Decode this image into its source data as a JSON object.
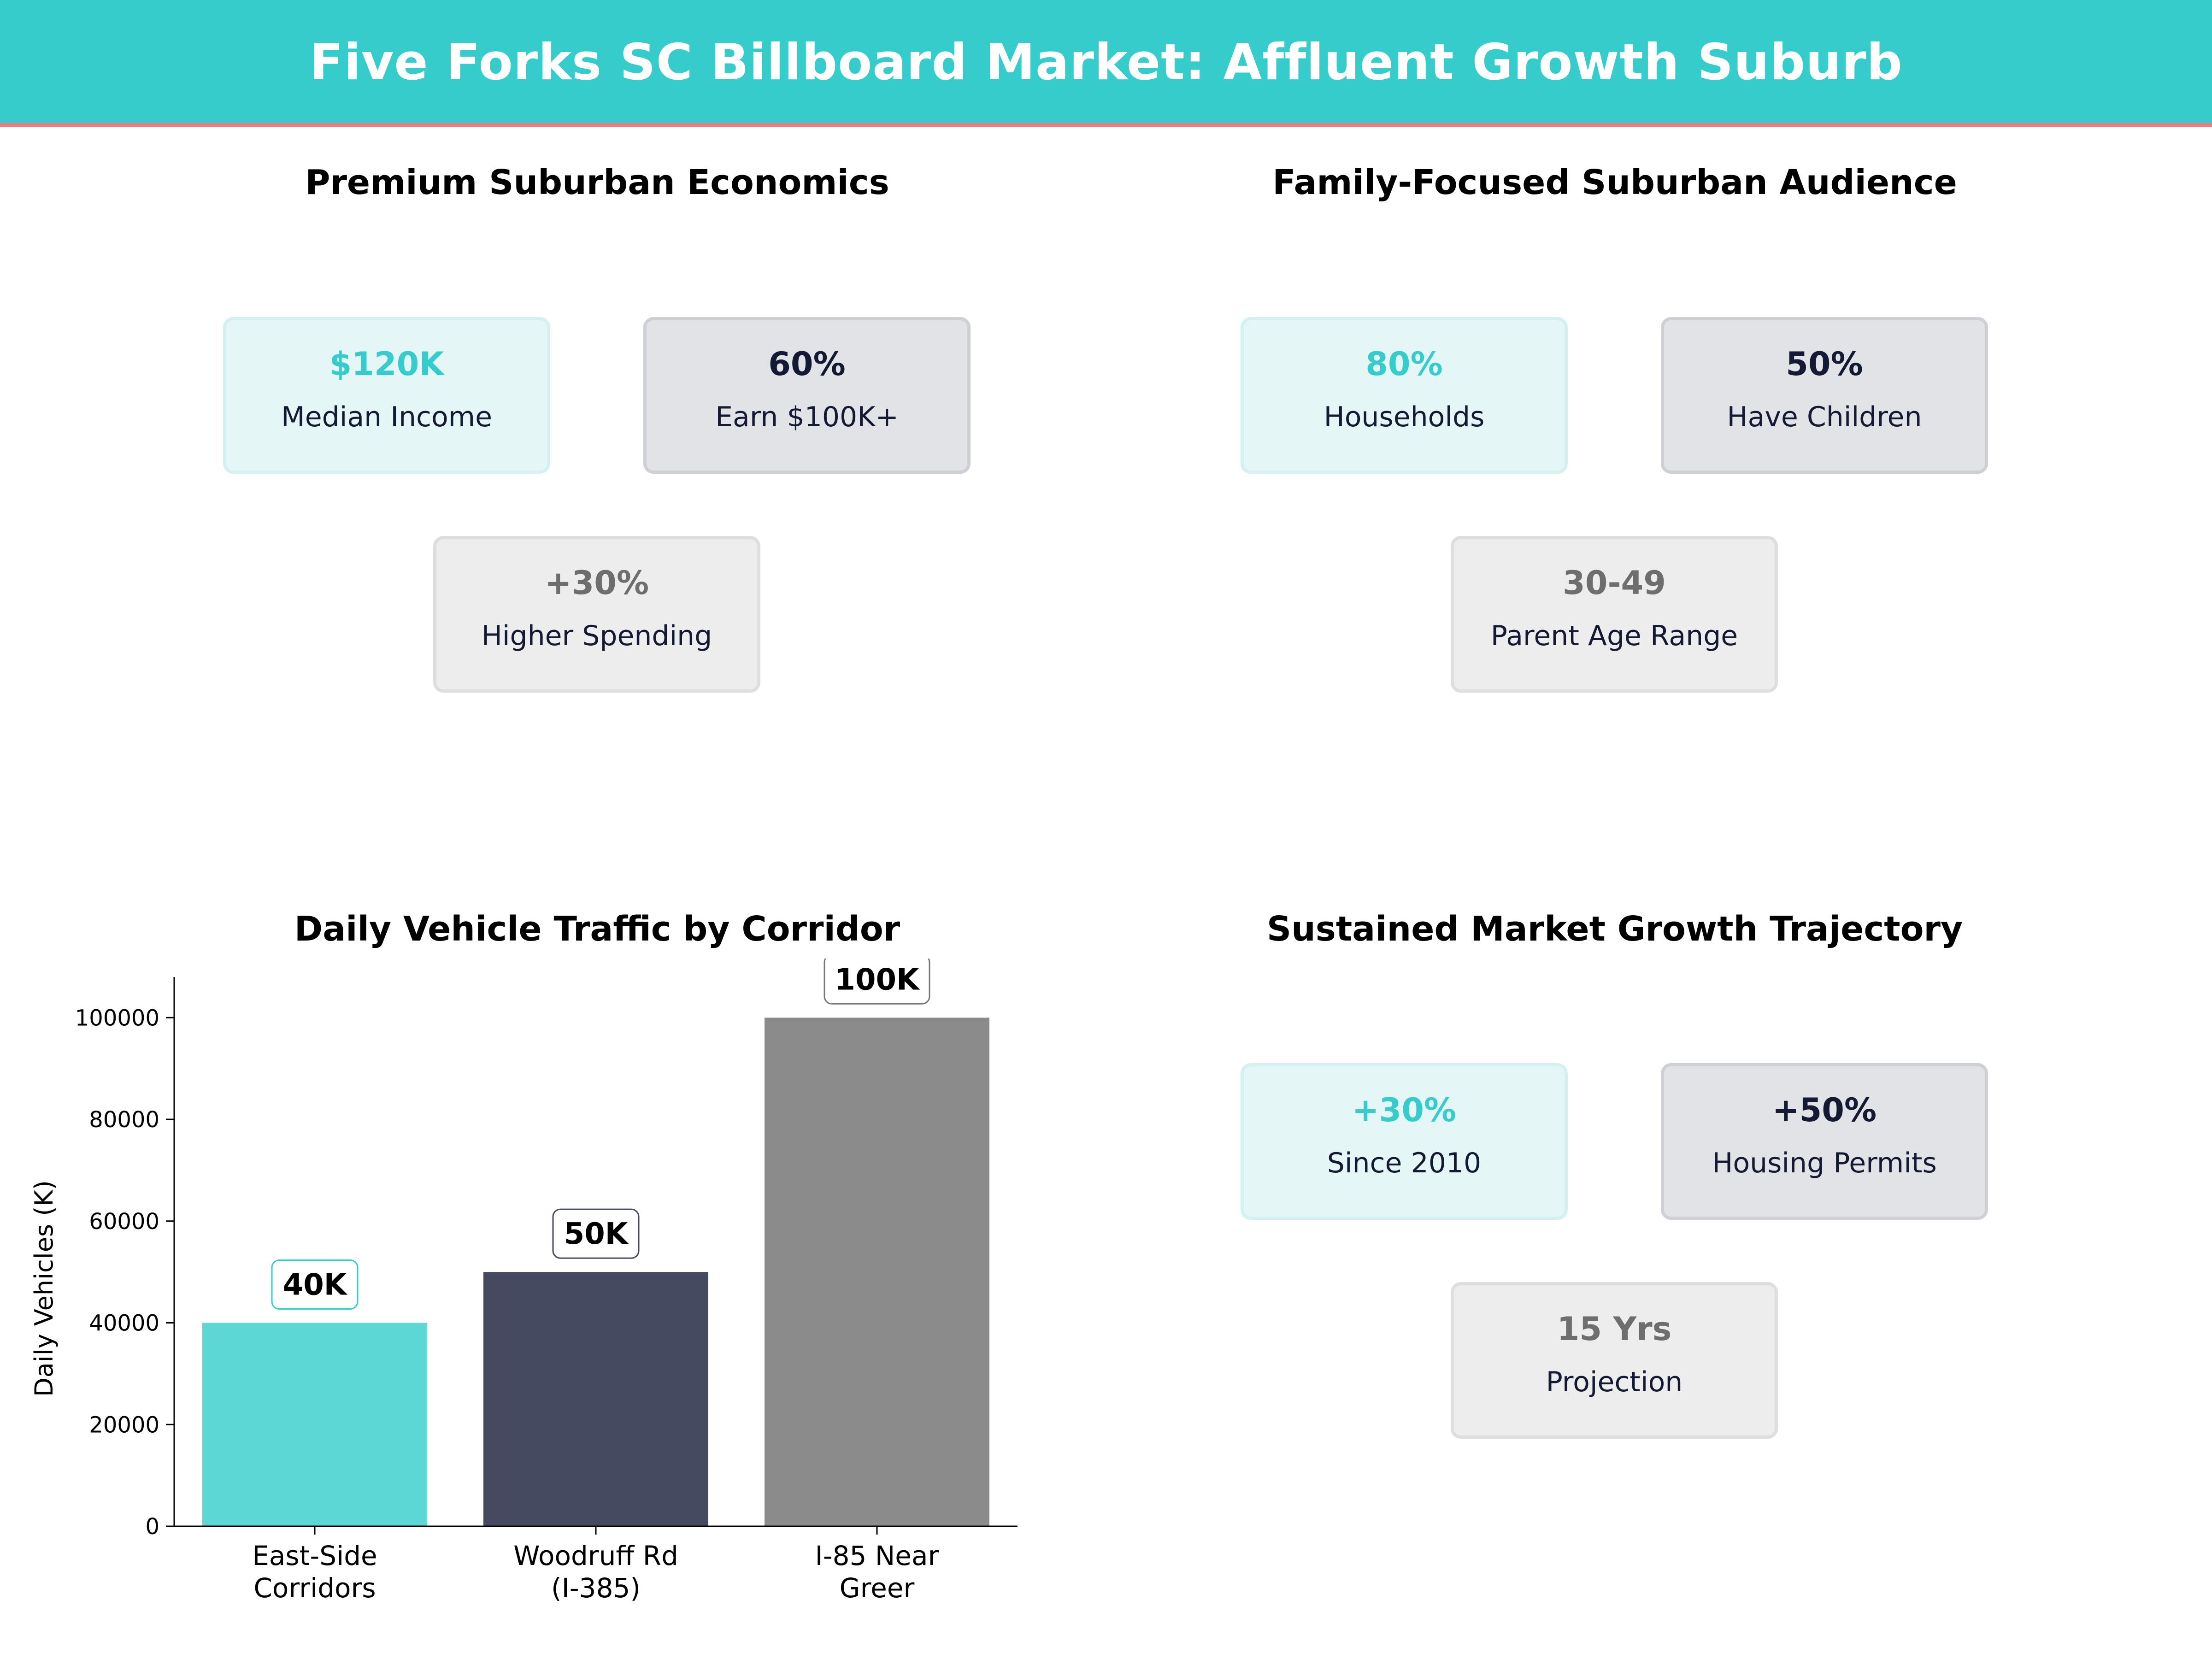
{
  "header": {
    "title": "Five Forks SC Billboard Market: Affluent Growth Suburb"
  },
  "economics": {
    "title": "Premium Suburban Economics",
    "cards": [
      {
        "value": "$120K",
        "label": "Median Income",
        "style": "teal"
      },
      {
        "value": "60%",
        "label": "Earn $100K+",
        "style": "navy"
      },
      {
        "value": "+30%",
        "label": "Higher Spending",
        "style": "grey"
      }
    ]
  },
  "audience": {
    "title": "Family-Focused Suburban Audience",
    "cards": [
      {
        "value": "80%",
        "label": "Households",
        "style": "teal"
      },
      {
        "value": "50%",
        "label": "Have Children",
        "style": "navy"
      },
      {
        "value": "30-49",
        "label": "Parent Age Range",
        "style": "grey"
      }
    ]
  },
  "growth": {
    "title": "Sustained Market Growth Trajectory",
    "cards": [
      {
        "value": "+30%",
        "label": "Since 2010",
        "style": "teal"
      },
      {
        "value": "+50%",
        "label": "Housing Permits",
        "style": "navy"
      },
      {
        "value": "15 Yrs",
        "label": "Projection",
        "style": "grey"
      }
    ]
  },
  "colors": {
    "teal": "#36cccc",
    "navy": "#141a33",
    "grey": "#6e6e6e",
    "accent_line": "#f07a80"
  },
  "chart_data": {
    "type": "bar",
    "title": "Daily Vehicle Traffic by Corridor",
    "xlabel": "",
    "ylabel": "Daily Vehicles (K)",
    "categories": [
      [
        "East-Side",
        "Corridors"
      ],
      [
        "Woodruff Rd",
        "(I-385)"
      ],
      [
        "I-85 Near",
        "Greer"
      ]
    ],
    "values": [
      40000,
      50000,
      100000
    ],
    "data_labels": [
      "40K",
      "50K",
      "100K"
    ],
    "bar_colors": [
      "#5dd6d6",
      "#464a61",
      "#8b8b8b"
    ],
    "label_border_colors": [
      "#36cccc",
      "#464a61",
      "#777777"
    ],
    "yticks": [
      0,
      20000,
      40000,
      60000,
      80000,
      100000
    ],
    "ylim": [
      0,
      108000
    ],
    "grid": false,
    "legend": "none"
  }
}
